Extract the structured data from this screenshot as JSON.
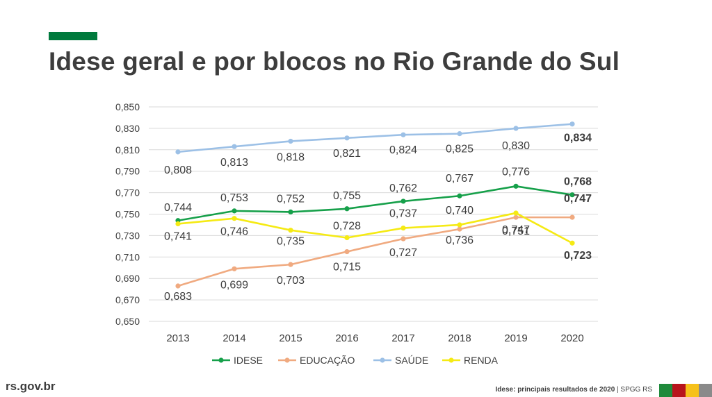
{
  "header": {
    "title": "Idese geral e por blocos no Rio Grande do Sul"
  },
  "footer": {
    "site": "rs.gov.br",
    "source_bold": "Idese: principais resultados de 2020",
    "source_rest": " | SPGG RS"
  },
  "colors": {
    "accent_green": "#007a3d",
    "flag": [
      "#1f8a3b",
      "#b8141c",
      "#f6c11b",
      "#8a8a8a"
    ]
  },
  "chart_data": {
    "type": "line",
    "x": [
      "2013",
      "2014",
      "2015",
      "2016",
      "2017",
      "2018",
      "2019",
      "2020"
    ],
    "ylim": [
      0.65,
      0.85
    ],
    "yticks": [
      "0,650",
      "0,670",
      "0,690",
      "0,710",
      "0,730",
      "0,750",
      "0,770",
      "0,790",
      "0,810",
      "0,830",
      "0,850"
    ],
    "grid": true,
    "legend_position": "bottom",
    "series": [
      {
        "name": "IDESE",
        "color": "#16a04a",
        "values": [
          0.744,
          0.753,
          0.752,
          0.755,
          0.762,
          0.767,
          0.776,
          0.768
        ],
        "labels": [
          "0,744",
          "0,753",
          "0,752",
          "0,755",
          "0,762",
          "0,767",
          "0,776",
          "0,768"
        ]
      },
      {
        "name": "EDUCAÇÃO",
        "color": "#f0aa80",
        "values": [
          0.683,
          0.699,
          0.703,
          0.715,
          0.727,
          0.736,
          0.747,
          0.747
        ],
        "labels": [
          "0,683",
          "0,699",
          "0,703",
          "0,715",
          "0,727",
          "0,736",
          "0,747",
          "0,747"
        ]
      },
      {
        "name": "SAÚDE",
        "color": "#9cc0e6",
        "values": [
          0.808,
          0.813,
          0.818,
          0.821,
          0.824,
          0.825,
          0.83,
          0.834
        ],
        "labels": [
          "0,808",
          "0,813",
          "0,818",
          "0,821",
          "0,824",
          "0,825",
          "0,830",
          "0,834"
        ]
      },
      {
        "name": "RENDA",
        "color": "#f5ea14",
        "values": [
          0.741,
          0.746,
          0.735,
          0.728,
          0.737,
          0.74,
          0.751,
          0.723
        ],
        "labels": [
          "0,741",
          "0,746",
          "0,735",
          "0,728",
          "0,737",
          "0,740",
          "0,751",
          "0,723"
        ]
      }
    ]
  }
}
